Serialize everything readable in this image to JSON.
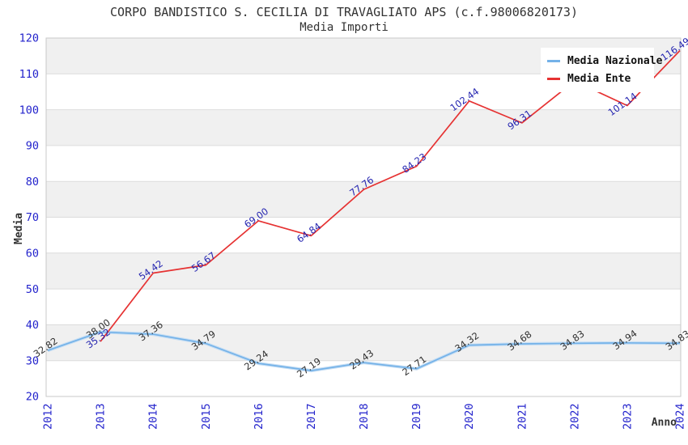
{
  "header": {
    "title": "CORPO BANDISTICO S. CECILIA DI TRAVAGLIATO APS (c.f.98006820173)",
    "subtitle": "Media Importi"
  },
  "chart_data": {
    "type": "line",
    "title": "CORPO BANDISTICO S. CECILIA DI TRAVAGLIATO APS (c.f.98006820173)",
    "subtitle": "Media Importi",
    "xlabel": "Anno",
    "ylabel": "Media",
    "x": [
      2012,
      2013,
      2014,
      2015,
      2016,
      2017,
      2018,
      2019,
      2020,
      2021,
      2022,
      2023,
      2024
    ],
    "ylim": [
      20,
      120
    ],
    "yticks": [
      20,
      30,
      40,
      50,
      60,
      70,
      80,
      90,
      100,
      110,
      120
    ],
    "grid": true,
    "legend_position": "top-right",
    "colors": {
      "band_fill": "#f0f0f0",
      "grid_line": "#dcdcdc",
      "plot_border": "#c8c8c8",
      "tick_label": "#2323cc",
      "title_text": "#333333"
    },
    "series": [
      {
        "name": "Media Nazionale",
        "color": "#74b2e8",
        "halo_color": "#c6def4",
        "label_color": "#303030",
        "values": [
          32.82,
          38.0,
          37.36,
          34.79,
          29.24,
          27.19,
          29.43,
          27.71,
          34.32,
          34.68,
          34.83,
          34.94,
          34.83
        ],
        "labels": [
          "32.82",
          "38.00",
          "37.36",
          "34.79",
          "29.24",
          "27.19",
          "29.43",
          "27.71",
          "34.32",
          "34.68",
          "34.83",
          "34.94",
          "34.83"
        ]
      },
      {
        "name": "Media Ente",
        "color": "#e63232",
        "halo_color": null,
        "label_color": "#2424b0",
        "values": [
          null,
          35.32,
          54.42,
          56.67,
          69.0,
          64.84,
          77.76,
          84.23,
          102.44,
          96.31,
          108.0,
          101.14,
          116.49
        ],
        "labels": [
          null,
          "35.32",
          "54.42",
          "56.67",
          "69.00",
          "64.84",
          "77.76",
          "84.23",
          "102.44",
          "96.31",
          null,
          "101.14",
          "116.49"
        ]
      }
    ]
  }
}
